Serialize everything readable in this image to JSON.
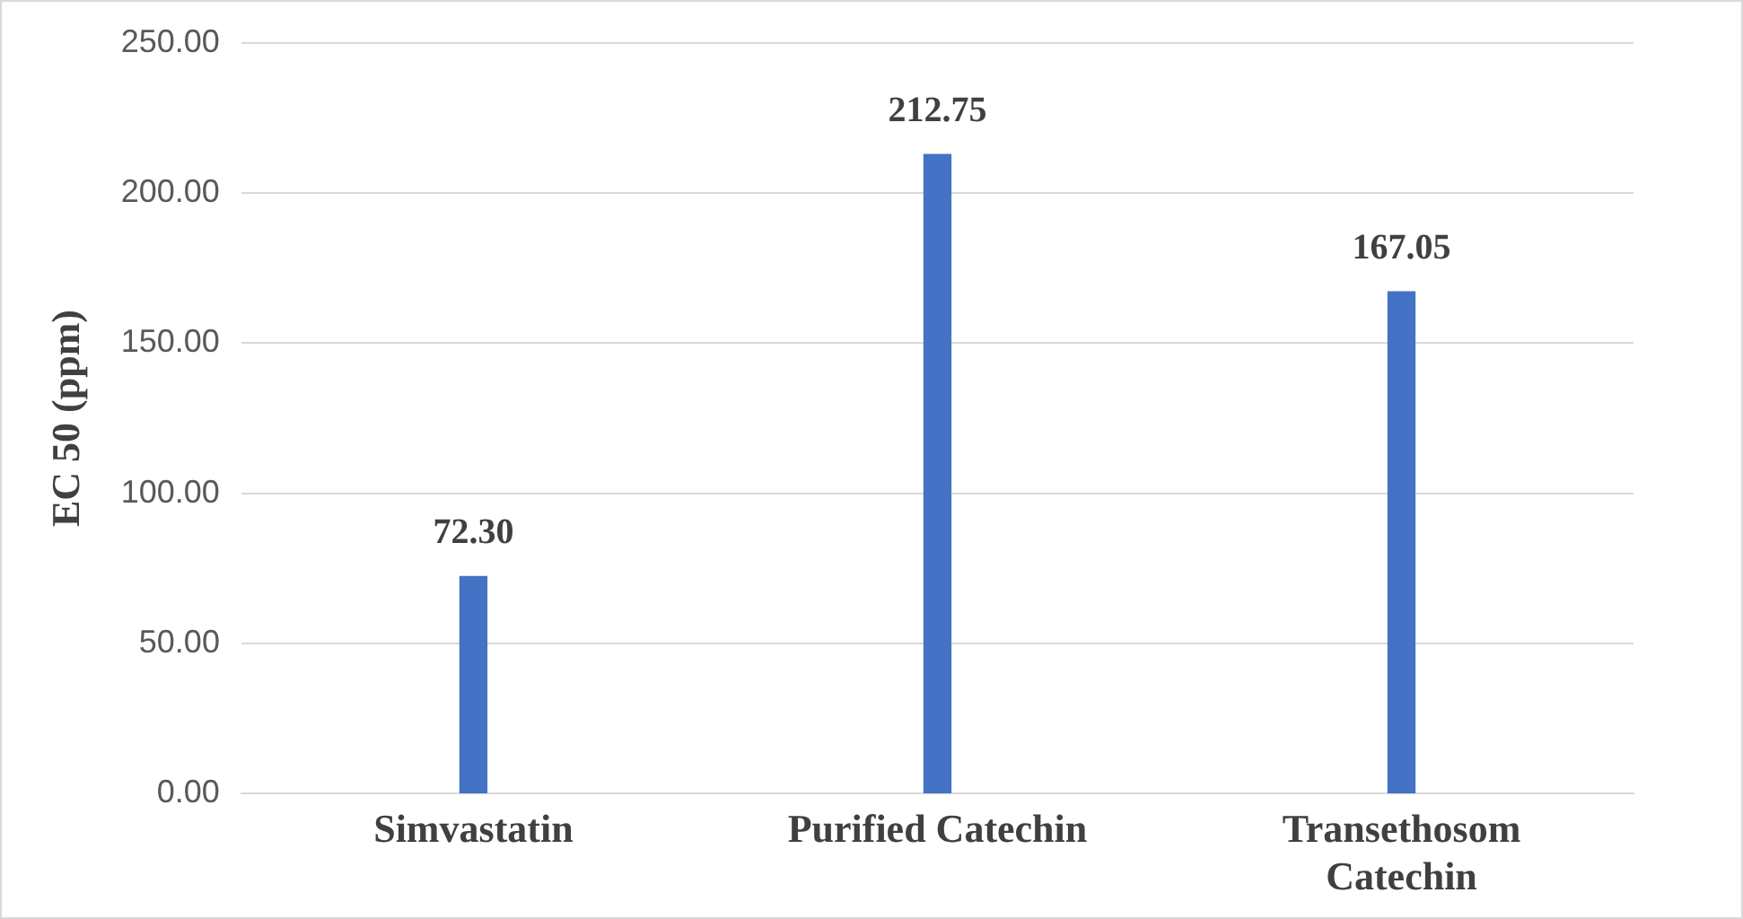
{
  "chart_data": {
    "type": "bar",
    "ylabel": "EC 50 (ppm)",
    "categories": [
      "Simvastatin",
      "Purified Catechin",
      "Transethosom Catechin"
    ],
    "values": [
      72.3,
      212.75,
      167.05
    ],
    "value_labels": [
      "72.30",
      "212.75",
      "167.05"
    ],
    "color": "#4472c4",
    "ylim": [
      0,
      250
    ],
    "yticks": [
      {
        "value": 0,
        "label": "0.00"
      },
      {
        "value": 50,
        "label": "50.00"
      },
      {
        "value": 100,
        "label": "100.00"
      },
      {
        "value": 150,
        "label": "150.00"
      },
      {
        "value": 200,
        "label": "200.00"
      },
      {
        "value": 250,
        "label": "250.00"
      }
    ],
    "grid": "y"
  }
}
